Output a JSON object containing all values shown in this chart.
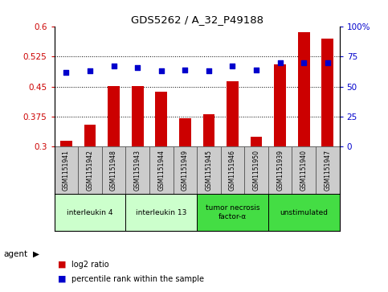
{
  "title": "GDS5262 / A_32_P49188",
  "samples": [
    "GSM1151941",
    "GSM1151942",
    "GSM1151948",
    "GSM1151943",
    "GSM1151944",
    "GSM1151949",
    "GSM1151945",
    "GSM1151946",
    "GSM1151950",
    "GSM1151939",
    "GSM1151940",
    "GSM1151947"
  ],
  "log2_ratio": [
    0.315,
    0.355,
    0.452,
    0.452,
    0.438,
    0.372,
    0.381,
    0.464,
    0.325,
    0.505,
    0.585,
    0.57
  ],
  "percentile": [
    62,
    63,
    67,
    66,
    63,
    64,
    63,
    67,
    64,
    70,
    70,
    70
  ],
  "ylim_left": [
    0.3,
    0.6
  ],
  "ylim_right": [
    0,
    100
  ],
  "yticks_left": [
    0.3,
    0.375,
    0.45,
    0.525,
    0.6
  ],
  "yticks_right": [
    0,
    25,
    50,
    75,
    100
  ],
  "bar_color": "#cc0000",
  "dot_color": "#0000cc",
  "groups": [
    {
      "label": "interleukin 4",
      "indices": [
        0,
        1,
        2
      ],
      "color": "#ccffcc"
    },
    {
      "label": "interleukin 13",
      "indices": [
        3,
        4,
        5
      ],
      "color": "#ccffcc"
    },
    {
      "label": "tumor necrosis\nfactor-α",
      "indices": [
        6,
        7,
        8
      ],
      "color": "#44dd44"
    },
    {
      "label": "unstimulated",
      "indices": [
        9,
        10,
        11
      ],
      "color": "#44dd44"
    }
  ],
  "agent_label": "agent",
  "legend_bar_label": "log2 ratio",
  "legend_dot_label": "percentile rank within the sample",
  "tick_color_left": "#cc0000",
  "tick_color_right": "#0000cc",
  "grid_color": "#000000",
  "sample_box_color": "#cccccc",
  "sample_box_edge": "#555555"
}
